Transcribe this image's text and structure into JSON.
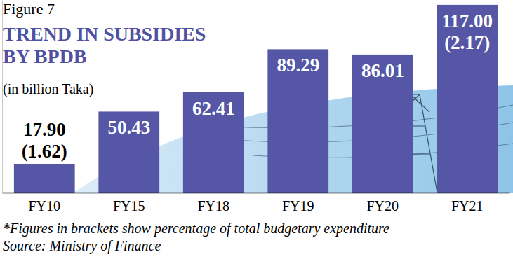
{
  "chart_data": {
    "type": "bar",
    "figure_label": "Figure 7",
    "title": "TREND IN SUBSIDIES BY BPDB",
    "subtitle": "(in billion Taka)",
    "categories": [
      "FY10",
      "FY15",
      "FY18",
      "FY19",
      "FY20",
      "FY21"
    ],
    "values": [
      17.9,
      50.43,
      62.41,
      89.29,
      86.01,
      117.0
    ],
    "value_labels": [
      "17.90",
      "50.43",
      "62.41",
      "89.29",
      "86.01",
      "117.00"
    ],
    "budget_share": {
      "values": [
        1.62,
        null,
        null,
        null,
        null,
        2.17
      ],
      "value_labels": [
        "(1.62)",
        null,
        null,
        null,
        null,
        "(2.17)"
      ]
    },
    "color": "#5557a6",
    "ylim": [
      0,
      120
    ],
    "yticks": [],
    "grid": false,
    "data_labels": true,
    "tick_labels": "x",
    "footnote": "*Figures in brackets show percentage of total budgetary expenditure",
    "source": "Source: Ministry of Finance"
  }
}
